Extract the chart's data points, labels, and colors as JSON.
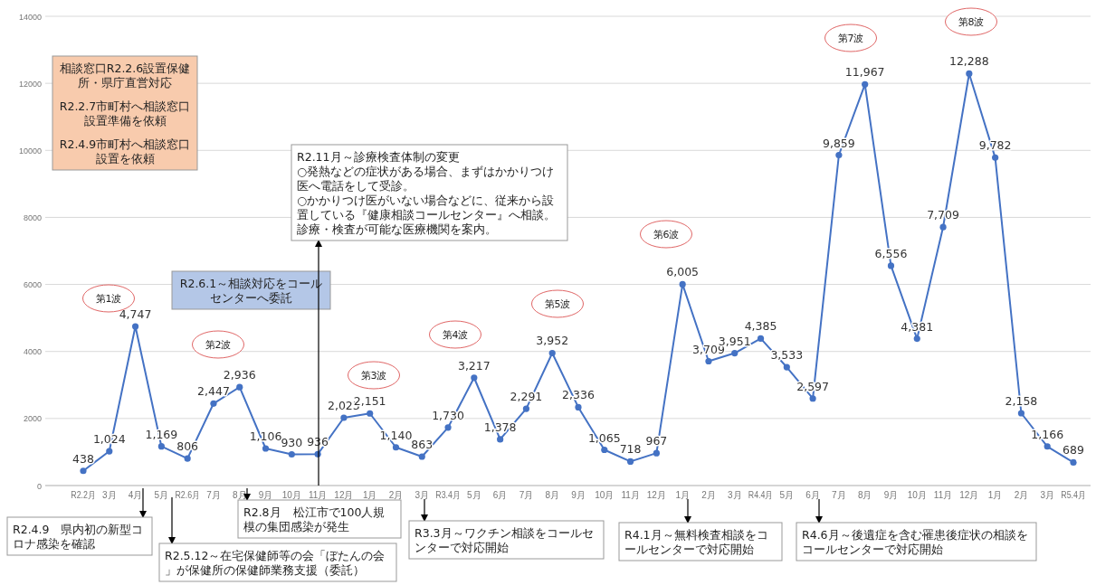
{
  "chart_data": {
    "type": "line",
    "categories": [
      "R2.2月",
      "3月",
      "4月",
      "5月",
      "R2.6月",
      "7月",
      "8月",
      "9月",
      "10月",
      "11月",
      "12月",
      "1月",
      "2月",
      "3月",
      "R3.4月",
      "5月",
      "6月",
      "7月",
      "8月",
      "9月",
      "10月",
      "11月",
      "12月",
      "1月",
      "2月",
      "3月",
      "R4.4月",
      "5月",
      "6月",
      "7月",
      "8月",
      "9月",
      "10月",
      "11月",
      "12月",
      "1月",
      "2月",
      "3月",
      "R5.4月"
    ],
    "values": [
      438,
      1024,
      4747,
      1169,
      806,
      2447,
      2936,
      1106,
      930,
      936,
      2023,
      2151,
      1140,
      863,
      1730,
      3217,
      1378,
      2291,
      3952,
      2336,
      1065,
      718,
      967,
      6005,
      3709,
      3951,
      4385,
      3533,
      2597,
      9859,
      11967,
      6556,
      4381,
      7709,
      12288,
      9782,
      2158,
      1166,
      689
    ],
    "value_labels": [
      "438",
      "1,024",
      "4,747",
      "1,169",
      "806",
      "2,447",
      "2,936",
      "1,106",
      "930",
      "936",
      "2,023",
      "2,151",
      "1,140",
      "863",
      "1,730",
      "3,217",
      "1,378",
      "2,291",
      "3,952",
      "2,336",
      "1,065",
      "718",
      "967",
      "6,005",
      "3,709",
      "3,951",
      "4,385",
      "3,533",
      "2,597",
      "9,859",
      "11,967",
      "6,556",
      "4,381",
      "7,709",
      "12,288",
      "9,782",
      "2,158",
      "1,166",
      "689"
    ],
    "color": "#4472c4",
    "marker": "circle",
    "line_style": "solid",
    "grid": "y",
    "ylim": [
      0,
      14000
    ],
    "yticks": [
      0,
      2000,
      4000,
      6000,
      8000,
      10000,
      12000,
      14000
    ],
    "annotations": [
      "第1波",
      "第2波",
      "第3波",
      "第4波",
      "第5波",
      "第6波",
      "第7波",
      "第8波",
      "相談窓口R2.2.6設置保健所・県庁直営対応",
      "R2.2.7市町村へ相談窓口設置準備を依頼",
      "R2.4.9市町村へ相談窓口設置を依頼",
      "R2.6.1～相談対応をコールセンターへ委託",
      "R2.11月～診療検査体制の変更\n○発熱などの症状がある場合、まずはかかりつけ医へ電話をして受診。\n○かかりつけ医がいない場合などに、従来から設置している『健康相談コールセンター』へ相談。診療・検査が可能な医療機関を案内。",
      "R2.4.9　県内初の新型コロナ感染を確認",
      "R2.5.12～在宅保健師等の会「ぼたんの会」が保健所の保健師業務支援（委託）",
      "R2.8月　松江市で100人規模の集団感染が発生",
      "R3.3月～ワクチン相談をコールセンターで対応開始",
      "R4.1月～無料検査相談をコールセンターで対応開始",
      "R4.6月～後遺症を含む罹患後症状の相談をコールセンターで対応開始"
    ]
  }
}
